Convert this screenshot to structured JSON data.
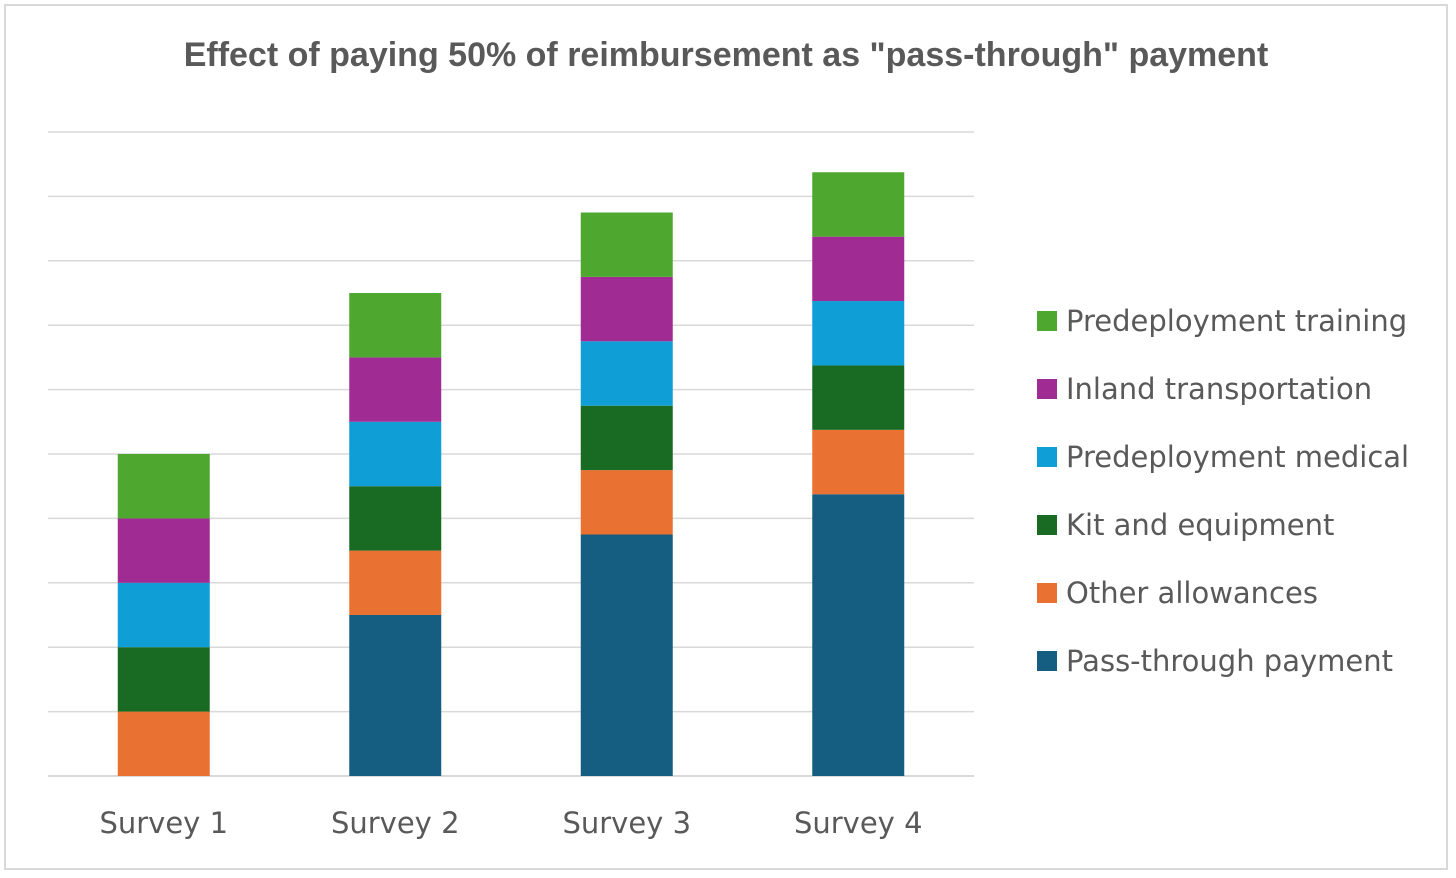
{
  "chart_data": {
    "type": "bar",
    "stacked": true,
    "title": "Effect of paying 50% of reimbursement as \"pass-through\" payment",
    "xlabel": "",
    "ylabel": "",
    "categories": [
      "Survey 1",
      "Survey 2",
      "Survey 3",
      "Survey 4"
    ],
    "ylim": [
      0,
      10
    ],
    "grid": true,
    "y_tick_labels_shown": false,
    "legend_position": "right",
    "series": [
      {
        "name": "Pass-through payment",
        "color": "#155e82",
        "values": [
          0,
          2.5,
          3.75,
          4.375
        ]
      },
      {
        "name": "Other allowances",
        "color": "#e97132",
        "values": [
          1,
          1,
          1,
          1
        ]
      },
      {
        "name": "Kit and equipment",
        "color": "#196b24",
        "values": [
          1,
          1,
          1,
          1
        ]
      },
      {
        "name": "Predeployment medical",
        "color": "#0f9ed5",
        "values": [
          1,
          1,
          1,
          1
        ]
      },
      {
        "name": "Inland transportation",
        "color": "#a02b93",
        "values": [
          1,
          1,
          1,
          1
        ]
      },
      {
        "name": "Predeployment training",
        "color": "#4ea72e",
        "values": [
          1,
          1,
          1,
          1
        ]
      }
    ]
  }
}
